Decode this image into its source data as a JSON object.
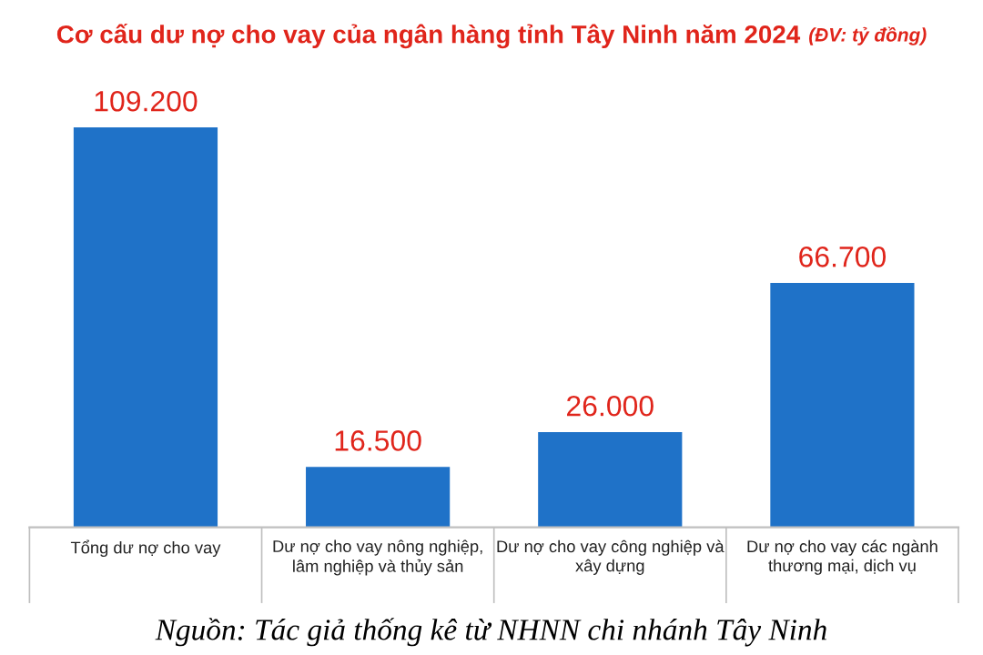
{
  "chart_data": {
    "type": "bar",
    "title": "Cơ cấu dư nợ cho vay của ngân hàng tỉnh Tây Ninh năm 2024",
    "subtitle": "(ĐV: tỷ đồng)",
    "categories": [
      "Tổng dư nợ cho vay",
      "Dư nợ cho vay nông nghiệp,\nlâm nghiệp và thủy sản",
      "Dư nợ cho vay công nghiệp và\nxây dựng",
      "Dư nợ cho vay các ngành\nthương mại, dịch vụ"
    ],
    "values": [
      109200,
      16500,
      26000,
      66700
    ],
    "value_labels": [
      "109.200",
      "16.500",
      "26.000",
      "66.700"
    ],
    "color": "#1f72c8",
    "grid": false,
    "legend": false,
    "annotations": [
      "Nguồn: Tác giả thống kê từ NHNN chi nhánh Tây Ninh"
    ]
  }
}
